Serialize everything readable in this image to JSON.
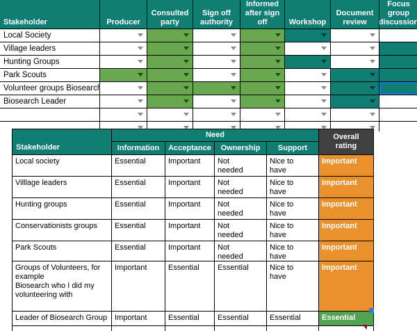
{
  "colors": {
    "teal": "#117e74",
    "green_cell": "#6aa84f",
    "orange_cell": "#e8912d",
    "overall_green": "#52a352",
    "header_dark": "#404040",
    "selection_blue": "#1a73e8",
    "handle_blue": "#2b78e4",
    "marker_red": "#98150c"
  },
  "top_table": {
    "headers": [
      "Stakeholder",
      "Producer",
      "Consulted\nparty",
      "Sign off\nauthority",
      "Informed\nafter sign\noff",
      "Workshop",
      "Document\nreview",
      "Focus\ngroup\ndiscussion"
    ],
    "rows": [
      {
        "name": "Local Society",
        "producer": "",
        "consulted_party": "green",
        "sign_off_authority": "",
        "informed_after_sign_off": "green",
        "workshop": "teal",
        "document_review": "",
        "focus_group_discussion": ""
      },
      {
        "name": "Village leaders",
        "producer": "",
        "consulted_party": "green",
        "sign_off_authority": "",
        "informed_after_sign_off": "green",
        "workshop": "",
        "document_review": "",
        "focus_group_discussion": "teal"
      },
      {
        "name": "Hunting Groups",
        "producer": "",
        "consulted_party": "green",
        "sign_off_authority": "",
        "informed_after_sign_off": "green",
        "workshop": "teal",
        "document_review": "",
        "focus_group_discussion": "teal"
      },
      {
        "name": "Park Scouts",
        "producer": "green",
        "consulted_party": "green",
        "sign_off_authority": "",
        "informed_after_sign_off": "green",
        "workshop": "",
        "document_review": "teal",
        "focus_group_discussion": "teal"
      },
      {
        "name": "Volunteer groups Biosearch",
        "producer": "",
        "consulted_party": "green",
        "sign_off_authority": "green",
        "informed_after_sign_off": "green",
        "workshop": "",
        "document_review": "teal",
        "focus_group_discussion": "teal-selected"
      },
      {
        "name": "Biosearch Leader",
        "producer": "",
        "consulted_party": "green",
        "sign_off_authority": "",
        "informed_after_sign_off": "green",
        "workshop": "",
        "document_review": "teal",
        "focus_group_discussion": ""
      },
      {
        "name": "",
        "producer": "",
        "consulted_party": "",
        "sign_off_authority": "",
        "informed_after_sign_off": "",
        "workshop": "",
        "document_review": "",
        "focus_group_discussion": ""
      },
      {
        "name": "",
        "producer": "",
        "consulted_party": "",
        "sign_off_authority": "",
        "informed_after_sign_off": "",
        "workshop": "",
        "document_review": "",
        "focus_group_discussion": ""
      }
    ]
  },
  "bottom_table": {
    "header": {
      "stakeholder": "Stakeholder",
      "need": "Need",
      "overall": "Overall\nrating",
      "needs": [
        "Information",
        "Acceptance",
        "Ownership",
        "Support"
      ]
    },
    "rows": [
      {
        "name": "Local society",
        "information": "Essential",
        "acceptance": "Important",
        "ownership": "Not\nneeded",
        "support": "Nice to\nhave",
        "overall": "Important"
      },
      {
        "name": "Villlage leaders",
        "information": "Essential",
        "acceptance": "Important",
        "ownership": "Not\nneeded",
        "support": "Nice to\nhave",
        "overall": "Important"
      },
      {
        "name": "Hunting groups",
        "information": "Essential",
        "acceptance": "Important",
        "ownership": "Not\nneeded",
        "support": "Nice to\nhave",
        "overall": "Important"
      },
      {
        "name": "Conservationists groups",
        "information": "Essential",
        "acceptance": "Important",
        "ownership": "Not\nneeded",
        "support": "Nice to\nhave",
        "overall": "Important"
      },
      {
        "name": "Park Scouts",
        "information": "Essential",
        "acceptance": "Important",
        "ownership": "Not\nneeded",
        "support": "Nice to\nhave",
        "overall": "Important"
      },
      {
        "name": "Groups of Volunteers, for\nexample\nBiosearch who I did my\nvolunteering with",
        "information": "Important",
        "acceptance": "Essential",
        "ownership": "Essential",
        "support": "Nice to\nhave",
        "overall": "Important"
      },
      {
        "name": "Leader of Biosearch Group",
        "information": "Important",
        "acceptance": "Essential",
        "ownership": "Essential",
        "support": "Essential",
        "overall": "Essential"
      }
    ]
  }
}
